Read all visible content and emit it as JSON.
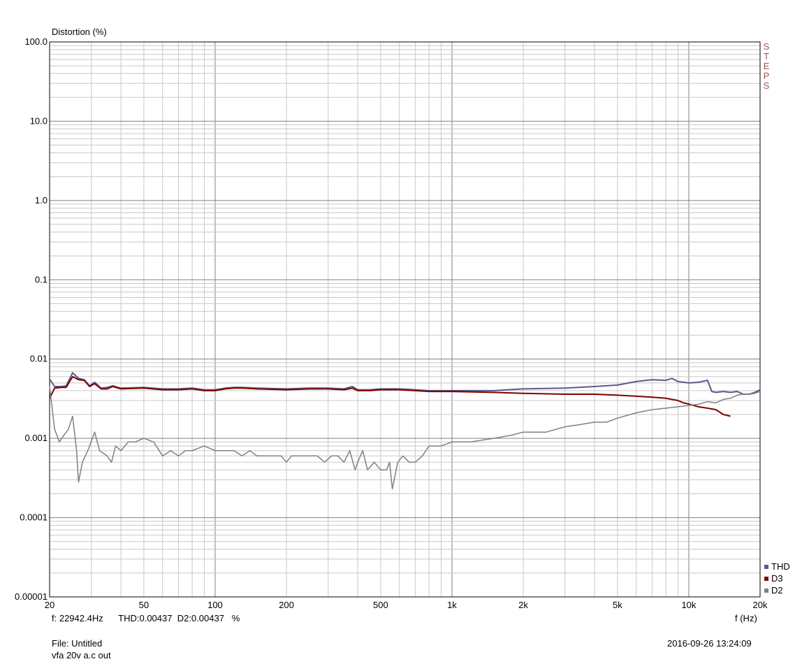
{
  "chart_data": {
    "type": "line",
    "ylabel": "Distortion (%)",
    "xlabel": "f (Hz)",
    "x_scale": "log",
    "y_scale": "log",
    "xlim": [
      20,
      20000
    ],
    "ylim": [
      1e-05,
      100
    ],
    "x_ticks": [
      {
        "value": 20,
        "label": "20"
      },
      {
        "value": 50,
        "label": "50"
      },
      {
        "value": 100,
        "label": "100"
      },
      {
        "value": 200,
        "label": "200"
      },
      {
        "value": 500,
        "label": "500"
      },
      {
        "value": 1000,
        "label": "1k"
      },
      {
        "value": 2000,
        "label": "2k"
      },
      {
        "value": 5000,
        "label": "5k"
      },
      {
        "value": 10000,
        "label": "10k"
      },
      {
        "value": 20000,
        "label": "20k"
      }
    ],
    "y_ticks": [
      {
        "value": 100,
        "label": "100.0"
      },
      {
        "value": 10,
        "label": "10.0"
      },
      {
        "value": 1,
        "label": "1.0"
      },
      {
        "value": 0.1,
        "label": "0.1"
      },
      {
        "value": 0.01,
        "label": "0.01"
      },
      {
        "value": 0.001,
        "label": "0.001"
      },
      {
        "value": 0.0001,
        "label": "0.0001"
      },
      {
        "value": 1e-05,
        "label": "0.00001"
      }
    ],
    "grid": true,
    "legend_position": "bottom-right",
    "series": [
      {
        "name": "THD",
        "color": "#5a5a8c",
        "points": [
          [
            20,
            0.0056
          ],
          [
            21,
            0.0045
          ],
          [
            22.5,
            0.0045
          ],
          [
            23.5,
            0.0046
          ],
          [
            25,
            0.0067
          ],
          [
            26.5,
            0.0057
          ],
          [
            28,
            0.0055
          ],
          [
            29.5,
            0.0046
          ],
          [
            31,
            0.0051
          ],
          [
            33,
            0.0043
          ],
          [
            35,
            0.0044
          ],
          [
            37,
            0.0046
          ],
          [
            40,
            0.0043
          ],
          [
            50,
            0.0044
          ],
          [
            60,
            0.0042
          ],
          [
            70,
            0.0042
          ],
          [
            80,
            0.0043
          ],
          [
            90,
            0.0041
          ],
          [
            100,
            0.0041
          ],
          [
            110,
            0.0043
          ],
          [
            120,
            0.0044
          ],
          [
            130,
            0.0044
          ],
          [
            150,
            0.0043
          ],
          [
            200,
            0.0042
          ],
          [
            250,
            0.0043
          ],
          [
            300,
            0.0043
          ],
          [
            350,
            0.0042
          ],
          [
            380,
            0.0045
          ],
          [
            400,
            0.0041
          ],
          [
            450,
            0.0041
          ],
          [
            500,
            0.0042
          ],
          [
            600,
            0.0042
          ],
          [
            700,
            0.0041
          ],
          [
            800,
            0.004
          ],
          [
            1000,
            0.004
          ],
          [
            1500,
            0.004
          ],
          [
            2000,
            0.0042
          ],
          [
            3000,
            0.0043
          ],
          [
            4000,
            0.0045
          ],
          [
            5000,
            0.0047
          ],
          [
            6000,
            0.0052
          ],
          [
            7000,
            0.0055
          ],
          [
            8000,
            0.0054
          ],
          [
            8500,
            0.0057
          ],
          [
            9000,
            0.0052
          ],
          [
            10000,
            0.005
          ],
          [
            11000,
            0.0051
          ],
          [
            12000,
            0.0054
          ],
          [
            12500,
            0.0039
          ],
          [
            13000,
            0.0038
          ],
          [
            14000,
            0.0039
          ],
          [
            15000,
            0.0038
          ],
          [
            16000,
            0.0039
          ],
          [
            17000,
            0.0036
          ],
          [
            18000,
            0.0036
          ],
          [
            19000,
            0.0038
          ],
          [
            20000,
            0.0041
          ]
        ]
      },
      {
        "name": "D3",
        "color": "#800000",
        "points": [
          [
            20,
            0.0032
          ],
          [
            21,
            0.0043
          ],
          [
            22.5,
            0.0044
          ],
          [
            23.5,
            0.0044
          ],
          [
            25,
            0.006
          ],
          [
            26.5,
            0.0055
          ],
          [
            28,
            0.0054
          ],
          [
            29.5,
            0.0045
          ],
          [
            31,
            0.0049
          ],
          [
            33,
            0.0042
          ],
          [
            35,
            0.0042
          ],
          [
            37,
            0.0045
          ],
          [
            40,
            0.0042
          ],
          [
            50,
            0.0043
          ],
          [
            60,
            0.0041
          ],
          [
            70,
            0.0041
          ],
          [
            80,
            0.0042
          ],
          [
            90,
            0.004
          ],
          [
            100,
            0.004
          ],
          [
            110,
            0.0042
          ],
          [
            120,
            0.0043
          ],
          [
            130,
            0.0043
          ],
          [
            150,
            0.0042
          ],
          [
            200,
            0.0041
          ],
          [
            250,
            0.0042
          ],
          [
            300,
            0.0042
          ],
          [
            350,
            0.0041
          ],
          [
            380,
            0.0043
          ],
          [
            400,
            0.004
          ],
          [
            450,
            0.004
          ],
          [
            500,
            0.0041
          ],
          [
            600,
            0.0041
          ],
          [
            700,
            0.004
          ],
          [
            800,
            0.0039
          ],
          [
            1000,
            0.0039
          ],
          [
            1500,
            0.0038
          ],
          [
            2000,
            0.0037
          ],
          [
            3000,
            0.0036
          ],
          [
            4000,
            0.0036
          ],
          [
            5000,
            0.0035
          ],
          [
            6000,
            0.0034
          ],
          [
            7000,
            0.0033
          ],
          [
            8000,
            0.0032
          ],
          [
            9000,
            0.003
          ],
          [
            9500,
            0.0028
          ],
          [
            10000,
            0.0027
          ],
          [
            11000,
            0.0025
          ],
          [
            12000,
            0.0024
          ],
          [
            13000,
            0.0023
          ],
          [
            14000,
            0.002
          ],
          [
            15000,
            0.0019
          ]
        ]
      },
      {
        "name": "D2",
        "color": "#808080",
        "points": [
          [
            20,
            0.0045
          ],
          [
            21,
            0.0013
          ],
          [
            22,
            0.0009
          ],
          [
            23,
            0.0011
          ],
          [
            24,
            0.0013
          ],
          [
            25,
            0.0019
          ],
          [
            26,
            0.0007
          ],
          [
            26.5,
            0.00028
          ],
          [
            27.5,
            0.0005
          ],
          [
            29,
            0.0007
          ],
          [
            31,
            0.0012
          ],
          [
            32.5,
            0.0007
          ],
          [
            35,
            0.0006
          ],
          [
            36.5,
            0.0005
          ],
          [
            38,
            0.0008
          ],
          [
            40,
            0.0007
          ],
          [
            43,
            0.0009
          ],
          [
            46,
            0.0009
          ],
          [
            50,
            0.001
          ],
          [
            55,
            0.0009
          ],
          [
            60,
            0.0006
          ],
          [
            65,
            0.0007
          ],
          [
            70,
            0.0006
          ],
          [
            75,
            0.0007
          ],
          [
            80,
            0.0007
          ],
          [
            90,
            0.0008
          ],
          [
            100,
            0.0007
          ],
          [
            110,
            0.0007
          ],
          [
            120,
            0.0007
          ],
          [
            130,
            0.0006
          ],
          [
            140,
            0.0007
          ],
          [
            150,
            0.0006
          ],
          [
            170,
            0.0006
          ],
          [
            190,
            0.0006
          ],
          [
            200,
            0.0005
          ],
          [
            210,
            0.0006
          ],
          [
            230,
            0.0006
          ],
          [
            250,
            0.0006
          ],
          [
            270,
            0.0006
          ],
          [
            290,
            0.0005
          ],
          [
            310,
            0.0006
          ],
          [
            330,
            0.0006
          ],
          [
            350,
            0.0005
          ],
          [
            370,
            0.0007
          ],
          [
            390,
            0.0004
          ],
          [
            400,
            0.0005
          ],
          [
            420,
            0.0007
          ],
          [
            440,
            0.0004
          ],
          [
            470,
            0.0005
          ],
          [
            500,
            0.0004
          ],
          [
            530,
            0.0004
          ],
          [
            545,
            0.0005
          ],
          [
            560,
            0.00023
          ],
          [
            590,
            0.0005
          ],
          [
            620,
            0.0006
          ],
          [
            660,
            0.0005
          ],
          [
            700,
            0.0005
          ],
          [
            750,
            0.0006
          ],
          [
            800,
            0.0008
          ],
          [
            900,
            0.0008
          ],
          [
            1000,
            0.0009
          ],
          [
            1200,
            0.0009
          ],
          [
            1500,
            0.001
          ],
          [
            1800,
            0.0011
          ],
          [
            2000,
            0.0012
          ],
          [
            2500,
            0.0012
          ],
          [
            3000,
            0.0014
          ],
          [
            3500,
            0.0015
          ],
          [
            4000,
            0.0016
          ],
          [
            4500,
            0.0016
          ],
          [
            5000,
            0.0018
          ],
          [
            6000,
            0.0021
          ],
          [
            7000,
            0.0023
          ],
          [
            8000,
            0.0024
          ],
          [
            9000,
            0.0025
          ],
          [
            10000,
            0.0026
          ],
          [
            11000,
            0.0027
          ],
          [
            12000,
            0.0029
          ],
          [
            13000,
            0.0028
          ],
          [
            14000,
            0.0031
          ],
          [
            15000,
            0.0032
          ],
          [
            16000,
            0.0035
          ],
          [
            17000,
            0.0036
          ],
          [
            18000,
            0.0036
          ],
          [
            19000,
            0.0037
          ],
          [
            20000,
            0.0039
          ]
        ]
      }
    ]
  },
  "readout": "f: 22942.4Hz      THD:0.00437  D2:0.00437   %",
  "file": "File: Untitled",
  "description": "vfa 20v a.c out",
  "timestamp": "2016-09-26 13:24:09",
  "side_label": [
    "S",
    "T",
    "E",
    "P",
    "S"
  ],
  "side_label_color": "#a05050",
  "legend": [
    {
      "name": "THD",
      "color": "#5a5a8c"
    },
    {
      "name": "D3",
      "color": "#800000"
    },
    {
      "name": "D2",
      "color": "#808080"
    }
  ]
}
